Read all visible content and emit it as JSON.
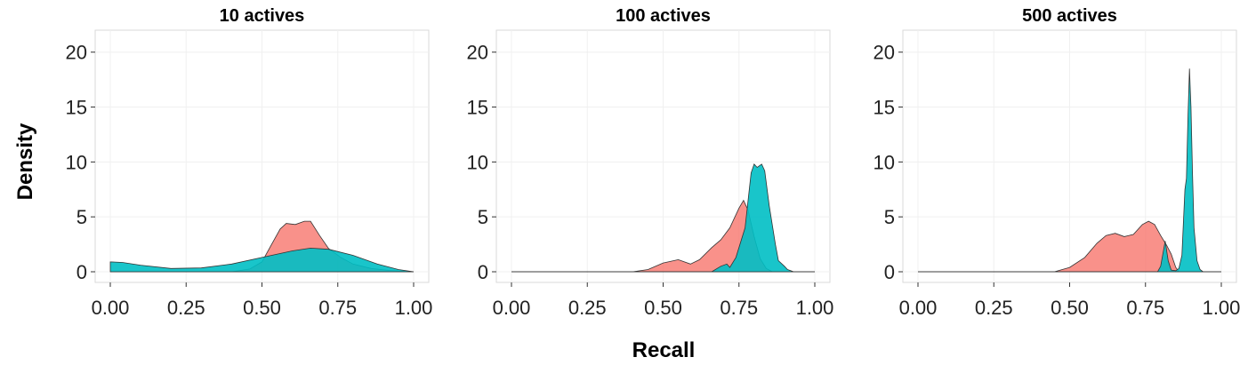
{
  "colors": {
    "series_a": "#F8766D",
    "series_b": "#00BFC4"
  },
  "chart_data": {
    "type": "area",
    "xlabel": "Recall",
    "ylabel": "Density",
    "xlim": [
      0,
      1
    ],
    "ylim": [
      0,
      22
    ],
    "x_ticks": [
      "0.00",
      "0.25",
      "0.50",
      "0.75",
      "1.00"
    ],
    "y_ticks": [
      "0",
      "5",
      "10",
      "15",
      "20"
    ],
    "grid": true,
    "legend": "none",
    "panels": [
      {
        "title": "10 actives",
        "series": [
          {
            "color": "#F8766D",
            "points": [
              [
                0,
                0
              ],
              [
                0.4,
                0
              ],
              [
                0.46,
                0.25
              ],
              [
                0.5,
                0.9
              ],
              [
                0.53,
                2.4
              ],
              [
                0.56,
                3.9
              ],
              [
                0.58,
                4.4
              ],
              [
                0.61,
                4.3
              ],
              [
                0.64,
                4.6
              ],
              [
                0.66,
                4.6
              ],
              [
                0.69,
                3.3
              ],
              [
                0.72,
                2.1
              ],
              [
                0.76,
                1.3
              ],
              [
                0.8,
                0.7
              ],
              [
                0.86,
                0.3
              ],
              [
                0.92,
                0.12
              ],
              [
                1,
                0
              ]
            ]
          },
          {
            "color": "#00BFC4",
            "points": [
              [
                0,
                0.9
              ],
              [
                0.04,
                0.85
              ],
              [
                0.1,
                0.6
              ],
              [
                0.2,
                0.3
              ],
              [
                0.3,
                0.35
              ],
              [
                0.4,
                0.7
              ],
              [
                0.5,
                1.3
              ],
              [
                0.6,
                1.9
              ],
              [
                0.66,
                2.15
              ],
              [
                0.72,
                2.05
              ],
              [
                0.8,
                1.5
              ],
              [
                0.88,
                0.7
              ],
              [
                0.95,
                0.2
              ],
              [
                1,
                0
              ]
            ]
          }
        ]
      },
      {
        "title": "100 actives",
        "series": [
          {
            "color": "#F8766D",
            "points": [
              [
                0,
                0
              ],
              [
                0.4,
                0
              ],
              [
                0.45,
                0.2
              ],
              [
                0.5,
                0.8
              ],
              [
                0.55,
                1.1
              ],
              [
                0.59,
                0.7
              ],
              [
                0.62,
                1.1
              ],
              [
                0.66,
                2.2
              ],
              [
                0.69,
                2.9
              ],
              [
                0.72,
                4.0
              ],
              [
                0.75,
                5.8
              ],
              [
                0.765,
                6.5
              ],
              [
                0.78,
                5.6
              ],
              [
                0.8,
                3.2
              ],
              [
                0.82,
                1.2
              ],
              [
                0.84,
                0.3
              ],
              [
                0.86,
                0
              ],
              [
                1,
                0
              ]
            ]
          },
          {
            "color": "#00BFC4",
            "points": [
              [
                0,
                0
              ],
              [
                0.66,
                0
              ],
              [
                0.69,
                0.5
              ],
              [
                0.71,
                0.7
              ],
              [
                0.72,
                0.4
              ],
              [
                0.74,
                1.3
              ],
              [
                0.77,
                4.0
              ],
              [
                0.79,
                9.0
              ],
              [
                0.8,
                9.8
              ],
              [
                0.81,
                9.5
              ],
              [
                0.825,
                9.8
              ],
              [
                0.835,
                9.2
              ],
              [
                0.85,
                6.0
              ],
              [
                0.87,
                2.5
              ],
              [
                0.88,
                1.0
              ],
              [
                0.9,
                0.5
              ],
              [
                0.91,
                0.2
              ],
              [
                0.93,
                0
              ],
              [
                1,
                0
              ]
            ]
          }
        ]
      },
      {
        "title": "500 actives",
        "series": [
          {
            "color": "#F8766D",
            "points": [
              [
                0,
                0
              ],
              [
                0.45,
                0
              ],
              [
                0.5,
                0.4
              ],
              [
                0.55,
                1.3
              ],
              [
                0.59,
                2.6
              ],
              [
                0.62,
                3.3
              ],
              [
                0.65,
                3.5
              ],
              [
                0.68,
                3.2
              ],
              [
                0.71,
                3.4
              ],
              [
                0.74,
                4.3
              ],
              [
                0.76,
                4.6
              ],
              [
                0.78,
                4.3
              ],
              [
                0.8,
                3.3
              ],
              [
                0.82,
                2.4
              ],
              [
                0.835,
                1.6
              ],
              [
                0.85,
                0.4
              ],
              [
                0.86,
                0
              ],
              [
                1,
                0
              ]
            ]
          },
          {
            "color": "#00BFC4",
            "points": [
              [
                0,
                0
              ],
              [
                0.79,
                0
              ],
              [
                0.8,
                0.5
              ],
              [
                0.815,
                2.8
              ],
              [
                0.825,
                1.0
              ],
              [
                0.835,
                0.15
              ],
              [
                0.85,
                0.1
              ],
              [
                0.86,
                0.3
              ],
              [
                0.87,
                1.5
              ],
              [
                0.88,
                7.5
              ],
              [
                0.885,
                8.5
              ],
              [
                0.89,
                14
              ],
              [
                0.895,
                18.5
              ],
              [
                0.9,
                15
              ],
              [
                0.905,
                9
              ],
              [
                0.91,
                4
              ],
              [
                0.92,
                1
              ],
              [
                0.93,
                0.2
              ],
              [
                0.94,
                0
              ],
              [
                1,
                0
              ]
            ]
          }
        ]
      }
    ]
  }
}
